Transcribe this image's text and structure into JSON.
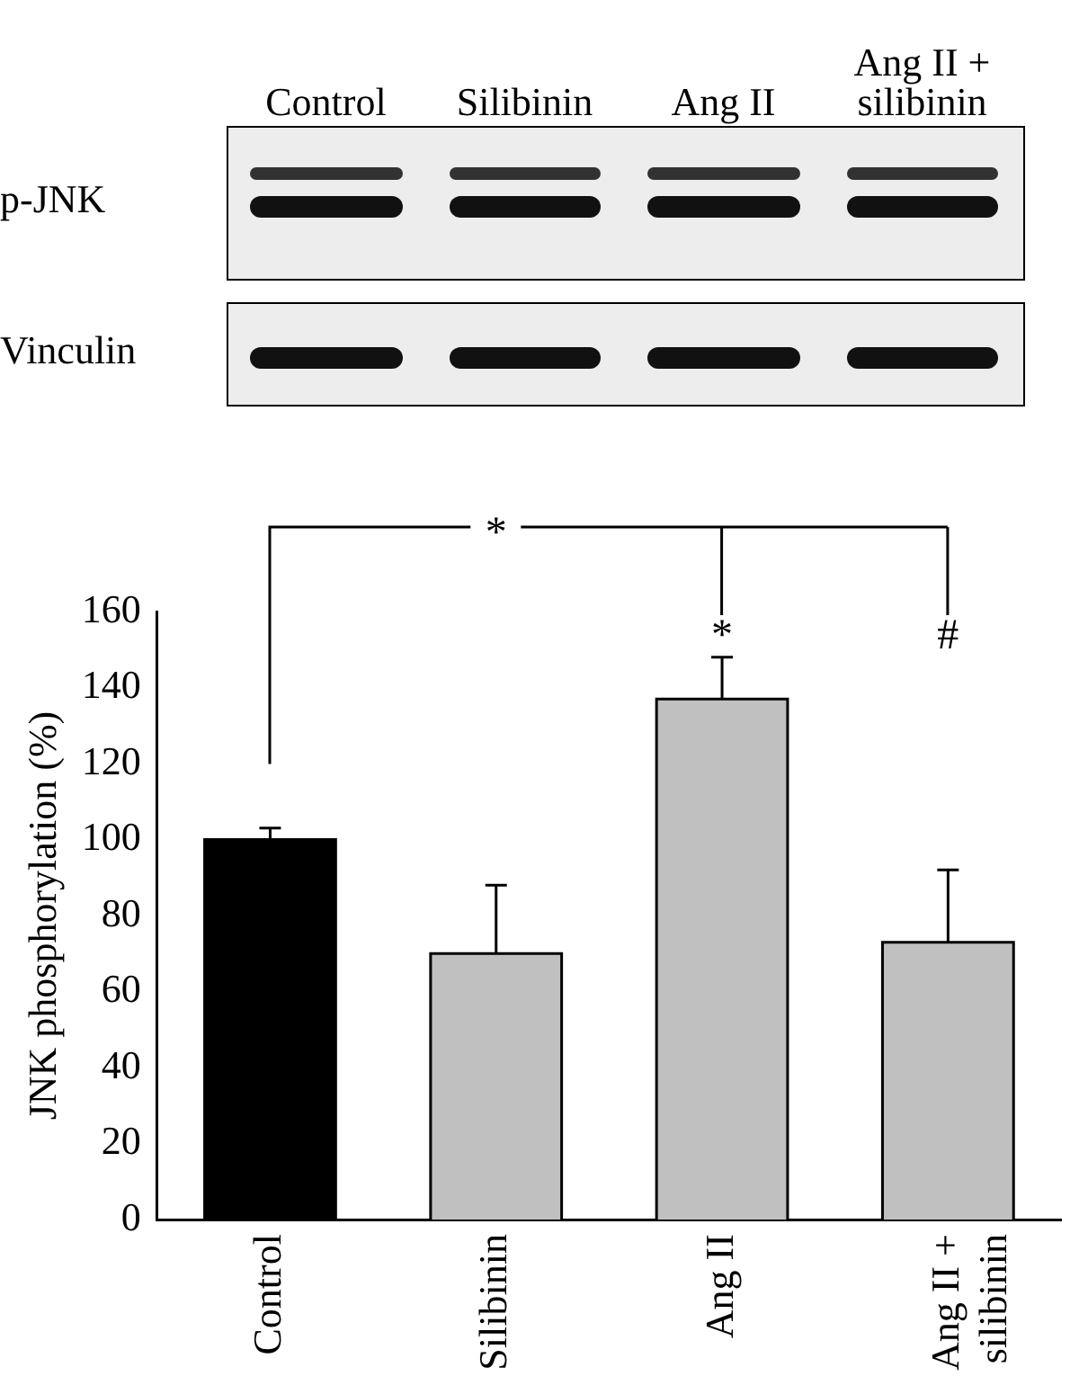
{
  "chart_data": {
    "type": "bar",
    "ylabel": "JNK phosphorylation (%)",
    "categories": [
      "Control",
      "Silibinin",
      "Ang II",
      "Ang II + silibinin"
    ],
    "values": [
      100,
      70,
      137,
      73
    ],
    "colors": [
      "#000000",
      "#c0c0c0",
      "#c0c0c0",
      "#c0c0c0"
    ],
    "errors": [
      [
        100,
        103
      ],
      [
        70,
        88
      ],
      [
        137,
        148
      ],
      [
        73,
        92
      ]
    ],
    "ylim": [
      0,
      160
    ],
    "yticks": [
      0,
      20,
      40,
      60,
      80,
      100,
      120,
      140,
      160
    ],
    "grid": false,
    "legend": false,
    "annotations": [
      "p-JNK",
      "Vinculin",
      "*",
      "*",
      "#"
    ]
  }
}
